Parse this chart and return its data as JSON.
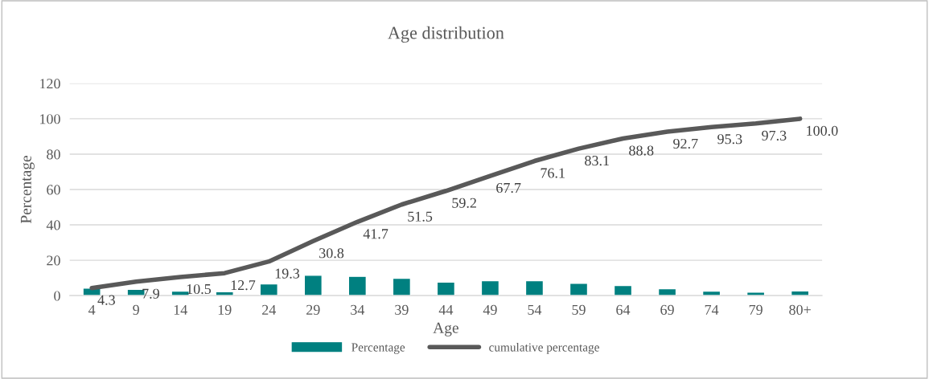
{
  "chart_data": {
    "type": "bar",
    "title": "Age distribution",
    "xlabel": "Age",
    "ylabel": "Percentage",
    "categories": [
      "4",
      "9",
      "14",
      "19",
      "24",
      "29",
      "34",
      "39",
      "44",
      "49",
      "54",
      "59",
      "64",
      "69",
      "74",
      "79",
      "80+"
    ],
    "series": [
      {
        "name": "Percentage",
        "color": "#008080",
        "values": [
          4.3,
          3.6,
          2.6,
          2.2,
          6.6,
          11.5,
          10.9,
          9.8,
          7.7,
          8.5,
          8.4,
          7.0,
          5.7,
          3.9,
          2.6,
          2.0,
          2.7
        ]
      },
      {
        "name": "cumulative percentage",
        "type": "line",
        "color": "#595959",
        "values": [
          4.3,
          7.9,
          10.5,
          12.7,
          19.3,
          30.8,
          41.7,
          51.5,
          59.2,
          67.7,
          76.1,
          83.1,
          88.8,
          92.7,
          95.3,
          97.3,
          100.0
        ],
        "value_labels": [
          "4.3",
          "7.9",
          "10.5",
          "12.7",
          "19.3",
          "30.8",
          "41.7",
          "51.5",
          "59.2",
          "67.7",
          "76.1",
          "83.1",
          "88.8",
          "92.7",
          "95.3",
          "97.3",
          "100.0"
        ]
      }
    ],
    "ylim": [
      0,
      120
    ],
    "yticks": [
      0,
      20,
      40,
      60,
      80,
      100,
      120
    ],
    "grid": "y",
    "legend": "bottom",
    "marker": "none"
  }
}
